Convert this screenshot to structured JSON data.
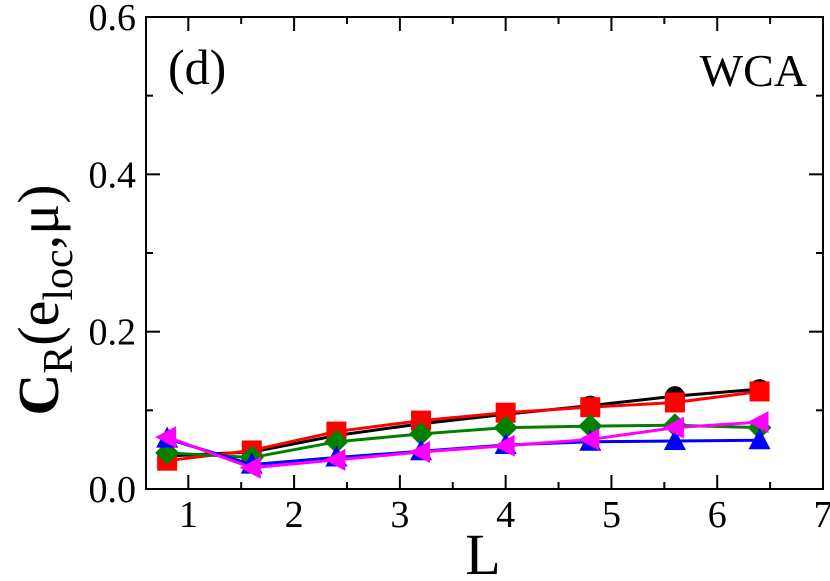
{
  "chart_data": {
    "type": "line",
    "panel_label": "(d)",
    "annotation": "WCA",
    "xlabel": "L",
    "ylabel_main": "C",
    "ylabel_sub": "R",
    "ylabel_args_open": "(e",
    "ylabel_args_sub": "loc",
    "ylabel_args_close": ",μ)",
    "xlim": [
      0.6,
      7
    ],
    "ylim": [
      0,
      0.6
    ],
    "xticks": [
      1,
      2,
      3,
      4,
      5,
      6,
      7
    ],
    "xtick_labels": [
      "1",
      "2",
      "3",
      "4",
      "5",
      "6",
      "7"
    ],
    "yticks": [
      0,
      0.2,
      0.4,
      0.6
    ],
    "ytick_labels": [
      "0.0",
      "0.2",
      "0.4",
      "0.6"
    ],
    "x": [
      0.8,
      1.6,
      2.4,
      3.2,
      4.0,
      4.8,
      5.6,
      6.4
    ],
    "series": [
      {
        "name": "black-circle",
        "color": "#000000",
        "marker": "circle",
        "values": [
          0.042,
          0.047,
          0.068,
          0.083,
          0.095,
          0.106,
          0.118,
          0.127
        ]
      },
      {
        "name": "red-square",
        "color": "#ff0000",
        "marker": "square",
        "values": [
          0.036,
          0.049,
          0.073,
          0.087,
          0.097,
          0.104,
          0.11,
          0.124
        ]
      },
      {
        "name": "green-diamond",
        "color": "#008000",
        "marker": "diamond",
        "values": [
          0.046,
          0.04,
          0.06,
          0.07,
          0.078,
          0.08,
          0.081,
          0.078
        ]
      },
      {
        "name": "blue-triangle-up",
        "color": "#0000ff",
        "marker": "triangle-up",
        "values": [
          0.064,
          0.031,
          0.04,
          0.048,
          0.056,
          0.06,
          0.061,
          0.062
        ]
      },
      {
        "name": "magenta-triangle-left",
        "color": "#ff00ff",
        "marker": "triangle-left",
        "values": [
          0.066,
          0.027,
          0.037,
          0.047,
          0.055,
          0.063,
          0.078,
          0.085
        ]
      }
    ]
  }
}
